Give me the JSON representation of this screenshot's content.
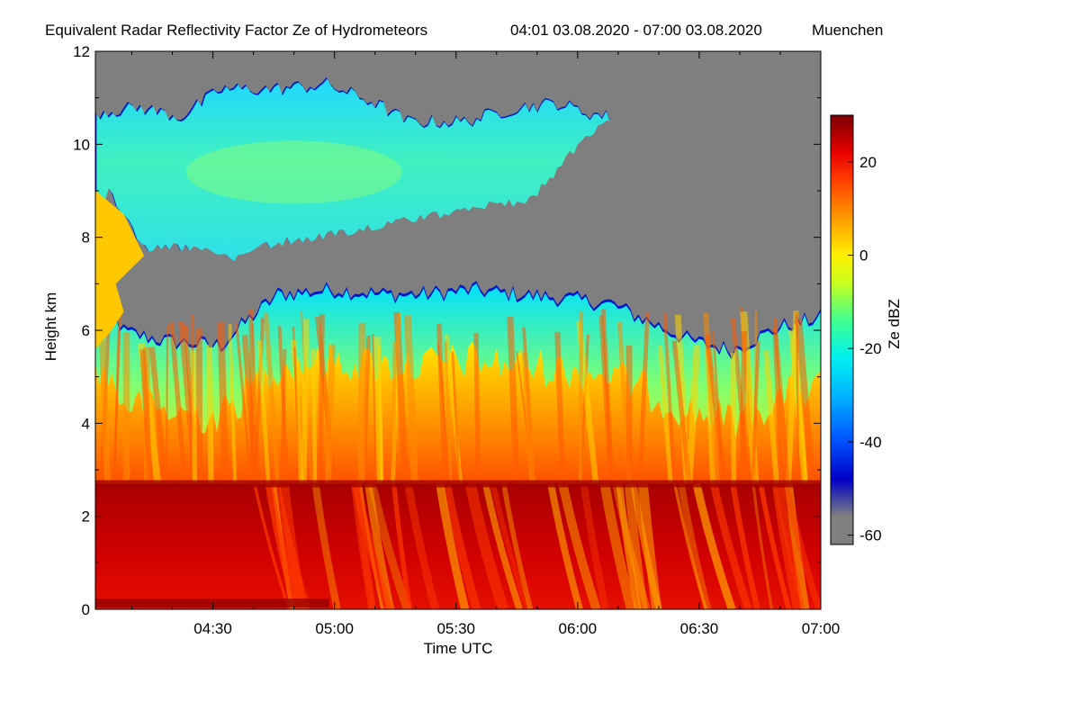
{
  "chart_data": {
    "type": "heatmap",
    "title": "Equivalent Radar Reflectivity Factor Ze of Hydrometeors",
    "time_range": "04:01 03.08.2020 - 07:00 03.08.2020",
    "location": "Muenchen",
    "xlabel": "Time UTC",
    "ylabel": "Height km",
    "colorbar_label": "Ze dBZ",
    "xlim_minutes": [
      241,
      420
    ],
    "ylim": [
      0,
      12
    ],
    "x_ticks": [
      {
        "label": "04:30",
        "value": 270
      },
      {
        "label": "05:00",
        "value": 300
      },
      {
        "label": "05:30",
        "value": 330
      },
      {
        "label": "06:00",
        "value": 360
      },
      {
        "label": "06:30",
        "value": 390
      },
      {
        "label": "07:00",
        "value": 420
      }
    ],
    "y_ticks": [
      {
        "label": "0",
        "value": 0
      },
      {
        "label": "2",
        "value": 2
      },
      {
        "label": "4",
        "value": 4
      },
      {
        "label": "6",
        "value": 6
      },
      {
        "label": "8",
        "value": 8
      },
      {
        "label": "10",
        "value": 10
      },
      {
        "label": "12",
        "value": 12
      }
    ],
    "colorbar_range": [
      -62,
      30
    ],
    "colorbar_ticks": [
      {
        "label": "20",
        "value": 20
      },
      {
        "label": "0",
        "value": 0
      },
      {
        "label": "-20",
        "value": -20
      },
      {
        "label": "-40",
        "value": -40
      },
      {
        "label": "-60",
        "value": -60
      }
    ],
    "colorbar_stops": [
      {
        "value": -62,
        "color": "#7f7f7f"
      },
      {
        "value": -56,
        "color": "#7f7f7f"
      },
      {
        "value": -48,
        "color": "#0000c8"
      },
      {
        "value": -40,
        "color": "#0050ff"
      },
      {
        "value": -30,
        "color": "#00b4ff"
      },
      {
        "value": -22,
        "color": "#00f0f0"
      },
      {
        "value": -14,
        "color": "#40ff90"
      },
      {
        "value": -6,
        "color": "#c8ff20"
      },
      {
        "value": 0,
        "color": "#ffee00"
      },
      {
        "value": 8,
        "color": "#ff9a00"
      },
      {
        "value": 16,
        "color": "#ff4000"
      },
      {
        "value": 22,
        "color": "#e80000"
      },
      {
        "value": 30,
        "color": "#7a0000"
      }
    ],
    "no_signal_color": "#7f7f7f",
    "layers": {
      "upper_cloud_top_km": [
        {
          "t": 241,
          "h": 10.7
        },
        {
          "t": 252,
          "h": 10.8
        },
        {
          "t": 262,
          "h": 10.6
        },
        {
          "t": 272,
          "h": 11.2
        },
        {
          "t": 285,
          "h": 11.2
        },
        {
          "t": 298,
          "h": 11.3
        },
        {
          "t": 310,
          "h": 10.9
        },
        {
          "t": 318,
          "h": 10.5
        },
        {
          "t": 332,
          "h": 10.5
        },
        {
          "t": 345,
          "h": 10.8
        },
        {
          "t": 355,
          "h": 10.9
        },
        {
          "t": 362,
          "h": 10.7
        },
        {
          "t": 368,
          "h": 10.6
        }
      ],
      "upper_cloud_base_km": [
        {
          "t": 244,
          "h": 9.0
        },
        {
          "t": 248,
          "h": 8.5
        },
        {
          "t": 252,
          "h": 7.8
        },
        {
          "t": 260,
          "h": 7.8
        },
        {
          "t": 268,
          "h": 7.8
        },
        {
          "t": 275,
          "h": 7.6
        },
        {
          "t": 285,
          "h": 7.9
        },
        {
          "t": 300,
          "h": 8.1
        },
        {
          "t": 312,
          "h": 8.3
        },
        {
          "t": 325,
          "h": 8.5
        },
        {
          "t": 338,
          "h": 8.7
        },
        {
          "t": 348,
          "h": 8.8
        },
        {
          "t": 355,
          "h": 9.5
        },
        {
          "t": 362,
          "h": 10.2
        },
        {
          "t": 368,
          "h": 10.6
        }
      ],
      "lower_cloud_top_km": [
        {
          "t": 244,
          "h": 6.6
        },
        {
          "t": 248,
          "h": 6.0
        },
        {
          "t": 258,
          "h": 5.8
        },
        {
          "t": 272,
          "h": 5.7
        },
        {
          "t": 278,
          "h": 6.2
        },
        {
          "t": 286,
          "h": 6.8
        },
        {
          "t": 300,
          "h": 6.9
        },
        {
          "t": 312,
          "h": 6.8
        },
        {
          "t": 322,
          "h": 6.8
        },
        {
          "t": 334,
          "h": 6.9
        },
        {
          "t": 345,
          "h": 6.8
        },
        {
          "t": 358,
          "h": 6.7
        },
        {
          "t": 368,
          "h": 6.6
        },
        {
          "t": 378,
          "h": 6.2
        },
        {
          "t": 388,
          "h": 5.8
        },
        {
          "t": 398,
          "h": 5.6
        },
        {
          "t": 410,
          "h": 6.1
        },
        {
          "t": 420,
          "h": 6.3
        }
      ],
      "melting_layer_km": 2.7
    }
  },
  "colors": {
    "rain": "#c80000",
    "snow_high": "#ff6a00",
    "snow_mid": "#ffd000",
    "ice_cloud": "#00e8ff",
    "ice_cloud_core": "#60ffb0",
    "cloud_edge": "#0018d0"
  }
}
